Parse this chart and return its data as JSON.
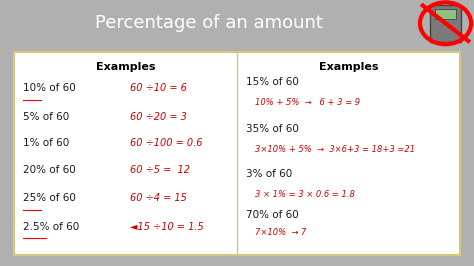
{
  "title": "Percentage of an amount",
  "title_bg": "#5b9bd5",
  "title_color": "white",
  "body_bg": "white",
  "border_color": "#d4c87a",
  "outer_bg": "#b0b0b0",
  "left_header": "Examples",
  "right_header": "Examples",
  "left_labels": [
    "10% of 60",
    "5% of 60",
    "1% of 60",
    "20% of 60",
    "25% of 60",
    "2.5% of 60"
  ],
  "left_underline": [
    true,
    false,
    false,
    false,
    true,
    true
  ],
  "left_answers": [
    "60 ÷10 = 6",
    "60 ÷20 = 3",
    "60 ÷100 = 0.6",
    "60 ÷5 =  12",
    "60 ÷4 = 15",
    "◄15 ÷10 = 1.5"
  ],
  "right_labels": [
    "15% of 60",
    "35% of 60",
    "3% of 60",
    "70% of 60"
  ],
  "right_answers": [
    "10% + 5%  →   6 + 3 = 9",
    "3×10% + 5%  →  3×6+3 = 18+3 =21",
    "3 × 1% = 3 × 0.6 = 1.8",
    "7×10%  → 7"
  ],
  "answer_color": "#cc0000",
  "label_color": "#1a1a1a",
  "header_color": "#000000"
}
